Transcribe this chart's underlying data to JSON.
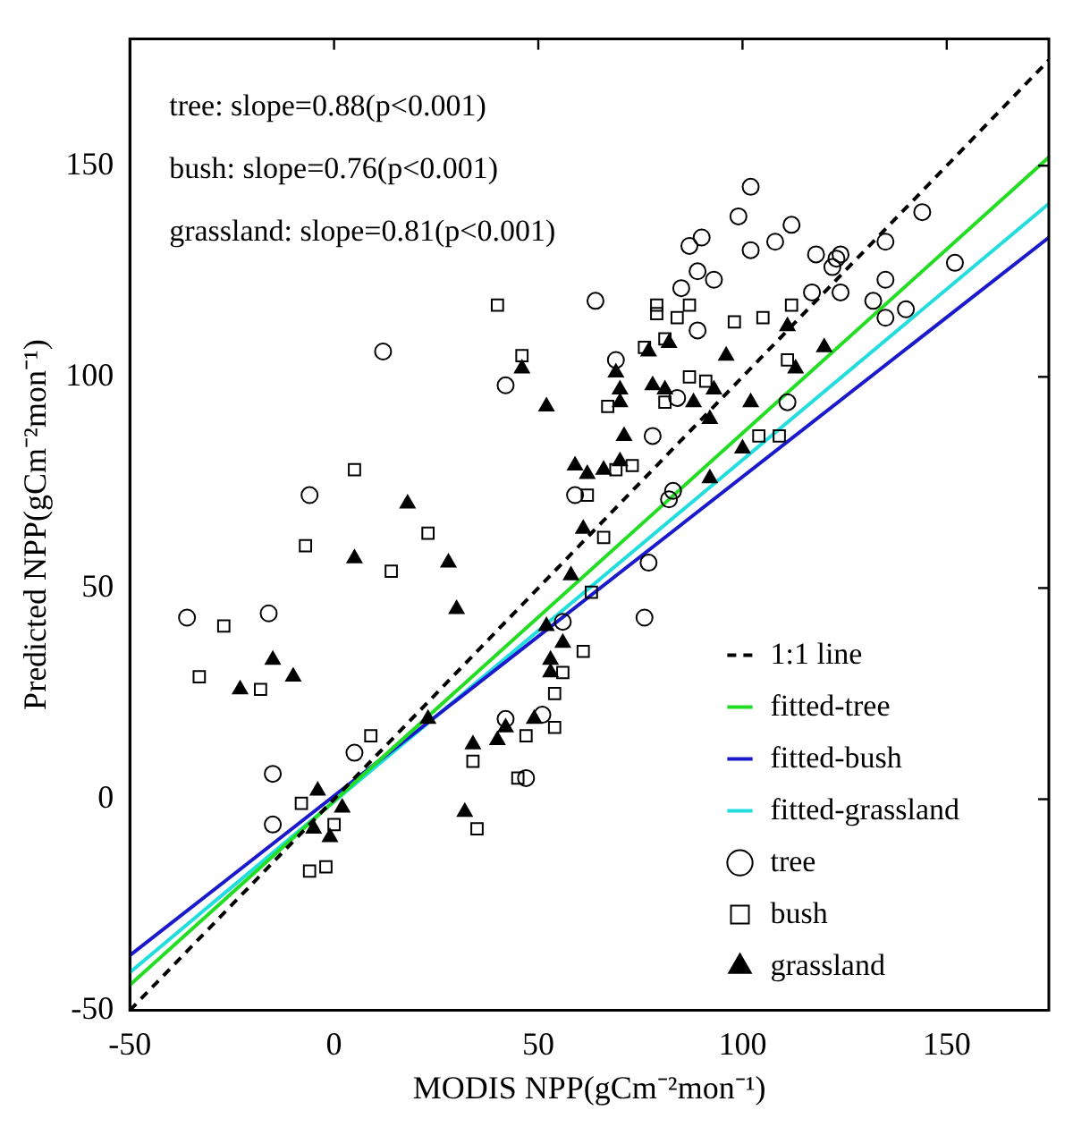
{
  "chart_data": {
    "type": "scatter",
    "xlabel": "MODIS NPP(gCm⁻²mon⁻¹)",
    "ylabel": "Predicted NPP(gCm⁻²mon⁻¹)",
    "annotations": [
      "tree: slope=0.88(p<0.001)",
      "bush: slope=0.76(p<0.001)",
      "grassland: slope=0.81(p<0.001)"
    ],
    "xlim": [
      -50,
      175
    ],
    "ylim": [
      -50,
      180
    ],
    "xticks": [
      -50,
      0,
      50,
      100,
      150
    ],
    "yticks": [
      -50,
      0,
      50,
      100,
      150
    ],
    "grid": false,
    "legend": "bottom right",
    "series": [
      {
        "name": "1:1 line",
        "type": "line",
        "line_style": "dashed",
        "color": "#000000",
        "x": [
          -50,
          175
        ],
        "values": [
          -50,
          175
        ]
      },
      {
        "name": "fitted-tree",
        "type": "line",
        "line_style": "solid",
        "color": "#22dd22",
        "x": [
          -50,
          175
        ],
        "values": [
          -44,
          152
        ]
      },
      {
        "name": "fitted-bush",
        "type": "line",
        "line_style": "solid",
        "color": "#1a1acc",
        "x": [
          -50,
          175
        ],
        "values": [
          -37,
          133
        ]
      },
      {
        "name": "fitted-grassland",
        "type": "line",
        "line_style": "solid",
        "color": "#22dddd",
        "x": [
          -50,
          175
        ],
        "values": [
          -41,
          141
        ]
      },
      {
        "name": "tree",
        "type": "scatter",
        "marker": "circle",
        "color": "#000000",
        "x": [
          12,
          42,
          -6,
          -36,
          -16,
          59,
          -15,
          -15,
          5,
          42,
          51,
          56,
          47,
          102,
          99,
          112,
          144,
          90,
          87,
          102,
          108,
          118,
          124,
          123,
          122,
          135,
          152,
          89,
          93,
          85,
          64,
          117,
          124,
          89,
          132,
          135,
          140,
          135,
          69,
          84,
          111,
          78,
          83,
          82,
          77,
          76
        ],
        "values": [
          106,
          98,
          72,
          43,
          44,
          72,
          6,
          -6,
          11,
          19,
          20,
          42,
          5,
          145,
          138,
          136,
          139,
          133,
          131,
          130,
          132,
          129,
          129,
          128,
          126,
          132,
          127,
          125,
          123,
          121,
          118,
          120,
          120,
          111,
          118,
          114,
          116,
          123,
          104,
          95,
          94,
          86,
          73,
          71,
          56,
          43
        ]
      },
      {
        "name": "bush",
        "type": "scatter",
        "marker": "square",
        "color": "#000000",
        "x": [
          40,
          46,
          5,
          -7,
          23,
          14,
          -27,
          62,
          -33,
          -18,
          9,
          -8,
          0,
          -6,
          -2,
          34,
          47,
          54,
          54,
          56,
          61,
          63,
          45,
          35,
          79,
          79,
          87,
          84,
          98,
          105,
          112,
          76,
          81,
          111,
          87,
          91,
          81,
          67,
          104,
          109,
          69,
          73,
          66
        ],
        "values": [
          117,
          105,
          78,
          60,
          63,
          54,
          41,
          72,
          29,
          26,
          15,
          -1,
          -6,
          -17,
          -16,
          9,
          15,
          17,
          25,
          30,
          35,
          49,
          5,
          -7,
          117,
          115,
          117,
          114,
          113,
          114,
          117,
          107,
          109,
          104,
          100,
          99,
          94,
          93,
          86,
          86,
          78,
          79,
          62
        ]
      },
      {
        "name": "grassland",
        "type": "scatter",
        "marker": "triangle",
        "color": "#000000",
        "x": [
          46,
          52,
          18,
          5,
          28,
          30,
          59,
          62,
          61,
          58,
          -15,
          -10,
          -23,
          -4,
          2,
          -5,
          -1,
          23,
          34,
          40,
          42,
          49,
          53,
          53,
          52,
          56,
          32,
          111,
          69,
          70,
          70,
          77,
          82,
          96,
          120,
          113,
          78,
          81,
          88,
          93,
          102,
          92,
          71,
          100,
          92,
          66,
          70
        ],
        "values": [
          102,
          93,
          70,
          57,
          56,
          45,
          79,
          77,
          64,
          53,
          33,
          29,
          26,
          2,
          -2,
          -7,
          -9,
          19,
          13,
          14,
          17,
          19,
          30,
          33,
          41,
          37,
          -3,
          112,
          101,
          97,
          94,
          106,
          108,
          105,
          107,
          102,
          98,
          97,
          94,
          97,
          94,
          90,
          86,
          83,
          76,
          78,
          80
        ]
      }
    ]
  }
}
